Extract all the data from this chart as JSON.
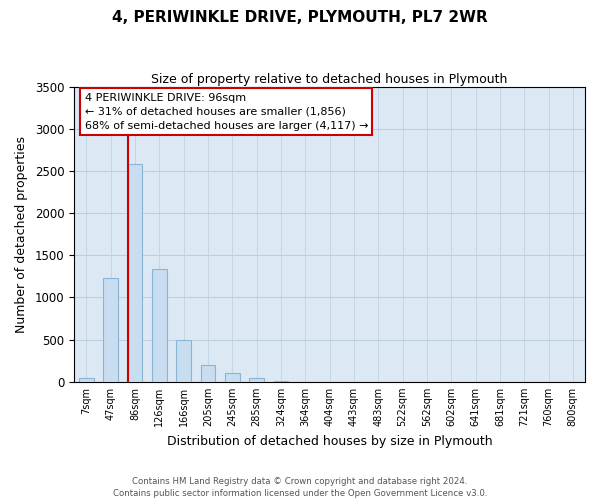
{
  "title": "4, PERIWINKLE DRIVE, PLYMOUTH, PL7 2WR",
  "subtitle": "Size of property relative to detached houses in Plymouth",
  "xlabel": "Distribution of detached houses by size in Plymouth",
  "ylabel": "Number of detached properties",
  "bar_labels": [
    "7sqm",
    "47sqm",
    "86sqm",
    "126sqm",
    "166sqm",
    "205sqm",
    "245sqm",
    "285sqm",
    "324sqm",
    "364sqm",
    "404sqm",
    "443sqm",
    "483sqm",
    "522sqm",
    "562sqm",
    "602sqm",
    "641sqm",
    "681sqm",
    "721sqm",
    "760sqm",
    "800sqm"
  ],
  "bar_values": [
    50,
    1230,
    2580,
    1340,
    500,
    200,
    110,
    40,
    5,
    0,
    0,
    0,
    0,
    0,
    0,
    0,
    0,
    0,
    0,
    0,
    0
  ],
  "bar_color": "#c8ddf0",
  "bar_edge_color": "#8ab4d4",
  "vline_color": "#cc0000",
  "vline_x_index": 2,
  "ylim": [
    0,
    3500
  ],
  "yticks": [
    0,
    500,
    1000,
    1500,
    2000,
    2500,
    3000,
    3500
  ],
  "annotation_title": "4 PERIWINKLE DRIVE: 96sqm",
  "annotation_line1": "← 31% of detached houses are smaller (1,856)",
  "annotation_line2": "68% of semi-detached houses are larger (4,117) →",
  "footer_line1": "Contains HM Land Registry data © Crown copyright and database right 2024.",
  "footer_line2": "Contains public sector information licensed under the Open Government Licence v3.0.",
  "background_color": "#ffffff",
  "plot_background": "#dce9f5",
  "grid_color": "#b8cfe0",
  "title_fontsize": 11,
  "subtitle_fontsize": 9
}
